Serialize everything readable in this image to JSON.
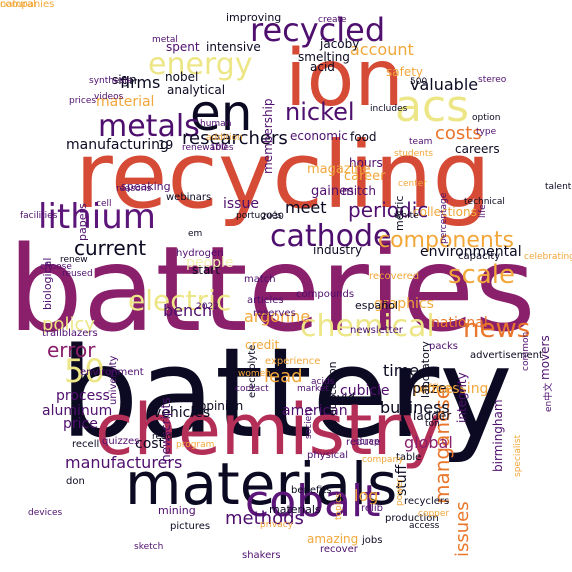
{
  "title": "",
  "palette": {
    "black": "#0b0a22",
    "darkpurple": "#4f0f6e",
    "purple": "#5c1578",
    "magenta": "#8a1f6b",
    "crimson": "#b42f57",
    "red": "#d54b36",
    "orange": "#e9762a",
    "gold": "#f2a73a",
    "yellow": "#ede686",
    "pale": "#f4f2b2"
  },
  "words": [
    {
      "t": "batteries",
      "c": "magenta"
    },
    {
      "t": "battery",
      "c": "black"
    },
    {
      "t": "recycling",
      "c": "red"
    },
    {
      "t": "ion",
      "c": "red"
    },
    {
      "t": "chemistry",
      "c": "crimson"
    },
    {
      "t": "materials",
      "c": "black"
    },
    {
      "t": "en",
      "c": "black"
    },
    {
      "t": "acs",
      "c": "yellow"
    },
    {
      "t": "cobalt",
      "c": "purple"
    },
    {
      "t": "lithium",
      "c": "purple"
    },
    {
      "t": "recycled",
      "c": "darkpurple"
    },
    {
      "t": "cathode",
      "c": "darkpurple"
    },
    {
      "t": "metals",
      "c": "darkpurple"
    },
    {
      "t": "energy",
      "c": "yellow"
    },
    {
      "t": "chemical",
      "c": "yellow"
    },
    {
      "t": "electric",
      "c": "yellow"
    },
    {
      "t": "nickel",
      "c": "darkpurple"
    },
    {
      "t": "components",
      "c": "gold"
    },
    {
      "t": "news",
      "c": "orange"
    },
    {
      "t": "researchers",
      "c": "black"
    },
    {
      "t": "costs",
      "c": "orange"
    },
    {
      "t": "valuable",
      "c": "black"
    },
    {
      "t": "periodic",
      "c": "darkpurple"
    },
    {
      "t": "scale",
      "c": "gold"
    },
    {
      "t": "50",
      "c": "yellow"
    },
    {
      "t": "error",
      "c": "magenta"
    },
    {
      "t": "policy",
      "c": "yellow"
    },
    {
      "t": "current",
      "c": "black"
    },
    {
      "t": "argonne",
      "c": "gold"
    },
    {
      "t": "account",
      "c": "gold"
    },
    {
      "t": "manganese",
      "c": "orange"
    },
    {
      "t": "issues",
      "c": "orange"
    },
    {
      "t": "meet",
      "c": "black"
    },
    {
      "t": "firms",
      "c": "black"
    },
    {
      "t": "material",
      "c": "gold"
    },
    {
      "t": "business",
      "c": "black"
    },
    {
      "t": "log",
      "c": "gold"
    },
    {
      "t": "methods",
      "c": "darkpurple"
    },
    {
      "t": "lead",
      "c": "gold"
    },
    {
      "t": "time",
      "c": "black"
    },
    {
      "t": "processing",
      "c": "gold"
    },
    {
      "t": "prize",
      "c": "black"
    },
    {
      "t": "manufacturers",
      "c": "darkpurple"
    },
    {
      "t": "vehicles",
      "c": "black"
    },
    {
      "t": "price",
      "c": "darkpurple"
    },
    {
      "t": "cost",
      "c": "black"
    },
    {
      "t": "aluminum",
      "c": "darkpurple"
    },
    {
      "t": "process",
      "c": "darkpurple"
    },
    {
      "t": "global",
      "c": "magenta"
    },
    {
      "t": "stuff",
      "c": "black"
    },
    {
      "t": "american",
      "c": "darkpurple"
    },
    {
      "t": "cubicle",
      "c": "darkpurple"
    },
    {
      "t": "bench",
      "c": "darkpurple"
    },
    {
      "t": "manufacturing",
      "c": "black"
    },
    {
      "t": "hours",
      "c": "darkpurple"
    },
    {
      "t": "career",
      "c": "gold"
    },
    {
      "t": "magazine",
      "c": "gold"
    },
    {
      "t": "mitch",
      "c": "darkpurple"
    },
    {
      "t": "gaines",
      "c": "darkpurple"
    },
    {
      "t": "issue",
      "c": "darkpurple"
    },
    {
      "t": "industry",
      "c": "black"
    },
    {
      "t": "collections",
      "c": "gold"
    },
    {
      "t": "environmental",
      "c": "black"
    },
    {
      "t": "national",
      "c": "orange"
    },
    {
      "t": "graphics",
      "c": "gold"
    },
    {
      "t": "birmingham",
      "c": "darkpurple"
    },
    {
      "t": "integrity",
      "c": "darkpurple"
    },
    {
      "t": "ladder",
      "c": "black"
    },
    {
      "t": "office",
      "c": "gold"
    },
    {
      "t": "covid",
      "c": "black"
    },
    {
      "t": "credit",
      "c": "gold"
    },
    {
      "t": "newscripts",
      "c": "darkpurple"
    },
    {
      "t": "opinion",
      "c": "black"
    },
    {
      "t": "start",
      "c": "black"
    },
    {
      "t": "spent",
      "c": "darkpurple"
    },
    {
      "t": "intensive",
      "c": "black"
    },
    {
      "t": "membership",
      "c": "darkpurple"
    },
    {
      "t": "nobel",
      "c": "black"
    },
    {
      "t": "analytical",
      "c": "black"
    },
    {
      "t": "acid",
      "c": "black"
    },
    {
      "t": "jacoby",
      "c": "black"
    },
    {
      "t": "smelting",
      "c": "black"
    },
    {
      "t": "improving",
      "c": "black"
    },
    {
      "t": "safety",
      "c": "gold"
    },
    {
      "t": "economic",
      "c": "darkpurple"
    },
    {
      "t": "food",
      "c": "black"
    },
    {
      "t": "careers",
      "c": "black"
    },
    {
      "t": "sign",
      "c": "black"
    },
    {
      "t": "19",
      "c": "black"
    },
    {
      "t": "metric",
      "c": "black"
    },
    {
      "t": "español",
      "c": "black"
    },
    {
      "t": "education",
      "c": "black"
    },
    {
      "t": "laboratory",
      "c": "black"
    },
    {
      "t": "movers",
      "c": "darkpurple"
    },
    {
      "t": "papers",
      "c": "darkpurple"
    },
    {
      "t": "biological",
      "c": "darkpurple"
    },
    {
      "t": "speaking",
      "c": "darkpurple"
    },
    {
      "t": "webinars",
      "c": "black"
    },
    {
      "t": "people",
      "c": "pale"
    },
    {
      "t": "electrolyte",
      "c": "black"
    },
    {
      "t": "university",
      "c": "darkpurple"
    },
    {
      "t": "environment",
      "c": "darkpurple"
    },
    {
      "t": "match",
      "c": "darkpurple"
    },
    {
      "t": "articles",
      "c": "darkpurple"
    },
    {
      "t": "reserves",
      "c": "darkpurple"
    },
    {
      "t": "quizzes",
      "c": "darkpurple"
    },
    {
      "t": "recell",
      "c": "black"
    },
    {
      "t": "amazing",
      "c": "gold"
    },
    {
      "t": "recover",
      "c": "darkpurple"
    },
    {
      "t": "jobs",
      "c": "black"
    },
    {
      "t": "mining",
      "c": "darkpurple"
    },
    {
      "t": "pictures",
      "c": "black"
    },
    {
      "t": "shakers",
      "c": "darkpurple"
    },
    {
      "t": "physical",
      "c": "darkpurple"
    },
    {
      "t": "table",
      "c": "black"
    },
    {
      "t": "materials",
      "c": "black"
    },
    {
      "t": "experience",
      "c": "gold"
    },
    {
      "t": "trailblazers",
      "c": "darkpurple"
    },
    {
      "t": "hydrogen",
      "c": "darkpurple"
    },
    {
      "t": "recovered",
      "c": "gold"
    },
    {
      "t": "capacity",
      "c": "black"
    },
    {
      "t": "compounds",
      "c": "darkpurple"
    },
    {
      "t": "newsletter",
      "c": "darkpurple"
    },
    {
      "t": "reduce",
      "c": "darkpurple"
    },
    {
      "t": "recyclers",
      "c": "black"
    },
    {
      "t": "production",
      "c": "black"
    },
    {
      "t": "packs",
      "c": "darkpurple"
    },
    {
      "t": "advertisement",
      "c": "black"
    },
    {
      "t": "privacy",
      "c": "gold"
    },
    {
      "t": "benefits",
      "c": "black"
    },
    {
      "t": "relib",
      "c": "darkpurple"
    },
    {
      "t": "copper",
      "c": "gold"
    },
    {
      "t": "access",
      "c": "black"
    },
    {
      "t": "2030",
      "c": "black"
    },
    {
      "t": "portugués",
      "c": "black"
    },
    {
      "t": "white",
      "c": "black"
    },
    {
      "t": "technical",
      "c": "black"
    },
    {
      "t": "percentage",
      "c": "darkpurple"
    },
    {
      "t": "celebrating",
      "c": "gold"
    },
    {
      "t": "choose",
      "c": "darkpurple"
    },
    {
      "t": "renew",
      "c": "black"
    },
    {
      "t": "reused",
      "c": "darkpurple"
    },
    {
      "t": "facilities",
      "c": "darkpurple"
    },
    {
      "t": "cell",
      "c": "darkpurple"
    },
    {
      "t": "prices",
      "c": "darkpurple"
    },
    {
      "t": "videos",
      "c": "darkpurple"
    },
    {
      "t": "synthesis",
      "c": "darkpurple"
    },
    {
      "t": "human",
      "c": "darkpurple"
    },
    {
      "t": "addition",
      "c": "gold"
    },
    {
      "t": "renewables",
      "c": "darkpurple"
    },
    {
      "t": "reasons",
      "c": "darkpurple"
    },
    {
      "t": "includes",
      "c": "black"
    },
    {
      "t": "option",
      "c": "black"
    },
    {
      "t": "type",
      "c": "darkpurple"
    },
    {
      "t": "stereo",
      "c": "darkpurple"
    },
    {
      "t": "create",
      "c": "darkpurple"
    },
    {
      "t": "students",
      "c": "gold"
    },
    {
      "t": "team",
      "c": "darkpurple"
    },
    {
      "t": "talented",
      "c": "black"
    },
    {
      "t": "em",
      "c": "black"
    },
    {
      "t": "2022",
      "c": "darkpurple"
    },
    {
      "t": "women",
      "c": "gold"
    },
    {
      "t": "contact",
      "c": "darkpurple"
    },
    {
      "t": "society",
      "c": "darkpurple"
    },
    {
      "t": "market",
      "c": "darkpurple"
    },
    {
      "t": "scrap",
      "c": "darkpurple"
    },
    {
      "t": "company",
      "c": "gold"
    },
    {
      "t": "power",
      "c": "gold"
    },
    {
      "t": "topics",
      "c": "gold"
    },
    {
      "t": "devices",
      "c": "darkpurple"
    },
    {
      "t": "sketch",
      "c": "darkpurple"
    },
    {
      "t": "program",
      "c": "gold"
    },
    {
      "t": "read",
      "c": "black"
    },
    {
      "t": "don",
      "c": "black"
    },
    {
      "t": "en中文",
      "c": "darkpurple"
    },
    {
      "t": "specialist",
      "c": "gold"
    },
    {
      "t": "common",
      "c": "darkpurple"
    },
    {
      "t": "life",
      "c": "darkpurple"
    },
    {
      "t": "metal",
      "c": "darkpurple"
    },
    {
      "t": "500",
      "c": "black"
    },
    {
      "t": "100",
      "c": "darkpurple"
    },
    {
      "t": "ton",
      "c": "black"
    },
    {
      "t": "acids",
      "c": "darkpurple"
    },
    {
      "t": "center",
      "c": "gold"
    },
    {
      "t": "natural",
      "c": "gold"
    },
    {
      "t": "companies",
      "c": "gold"
    }
  ]
}
